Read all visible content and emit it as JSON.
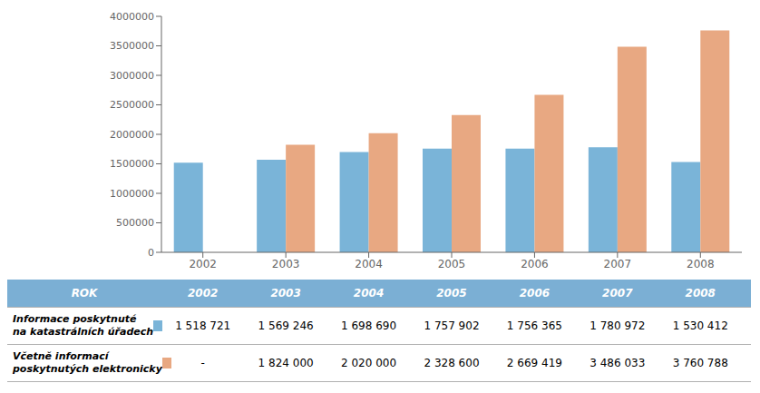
{
  "chart_data": {
    "type": "bar",
    "categories": [
      "2002",
      "2003",
      "2004",
      "2005",
      "2006",
      "2007",
      "2008"
    ],
    "series": [
      {
        "name": "Informace poskytnuté\nna katastrálních úřadech",
        "color": "#7ab4d8",
        "values": [
          1518721,
          1569246,
          1698690,
          1757902,
          1756365,
          1780972,
          1530412
        ],
        "value_labels": [
          "1 518 721",
          "1 569 246",
          "1 698 690",
          "1 757 902",
          "1 756 365",
          "1 780 972",
          "1 530 412"
        ]
      },
      {
        "name": "Včetně informací\nposkytnutých elektronicky",
        "color": "#e8a882",
        "values": [
          null,
          1824000,
          2020000,
          2328600,
          2669419,
          3486033,
          3760788
        ],
        "value_labels": [
          "-",
          "1 824 000",
          "2 020 000",
          "2 328 600",
          "2 669 419",
          "3 486 033",
          "3 760 788"
        ]
      }
    ],
    "ylim": [
      0,
      4000000
    ],
    "yticks": [
      0,
      500000,
      1000000,
      1500000,
      2000000,
      2500000,
      3000000,
      3500000,
      4000000
    ],
    "grid": false,
    "table": {
      "header": "ROK",
      "color": "#7bafd4"
    }
  }
}
